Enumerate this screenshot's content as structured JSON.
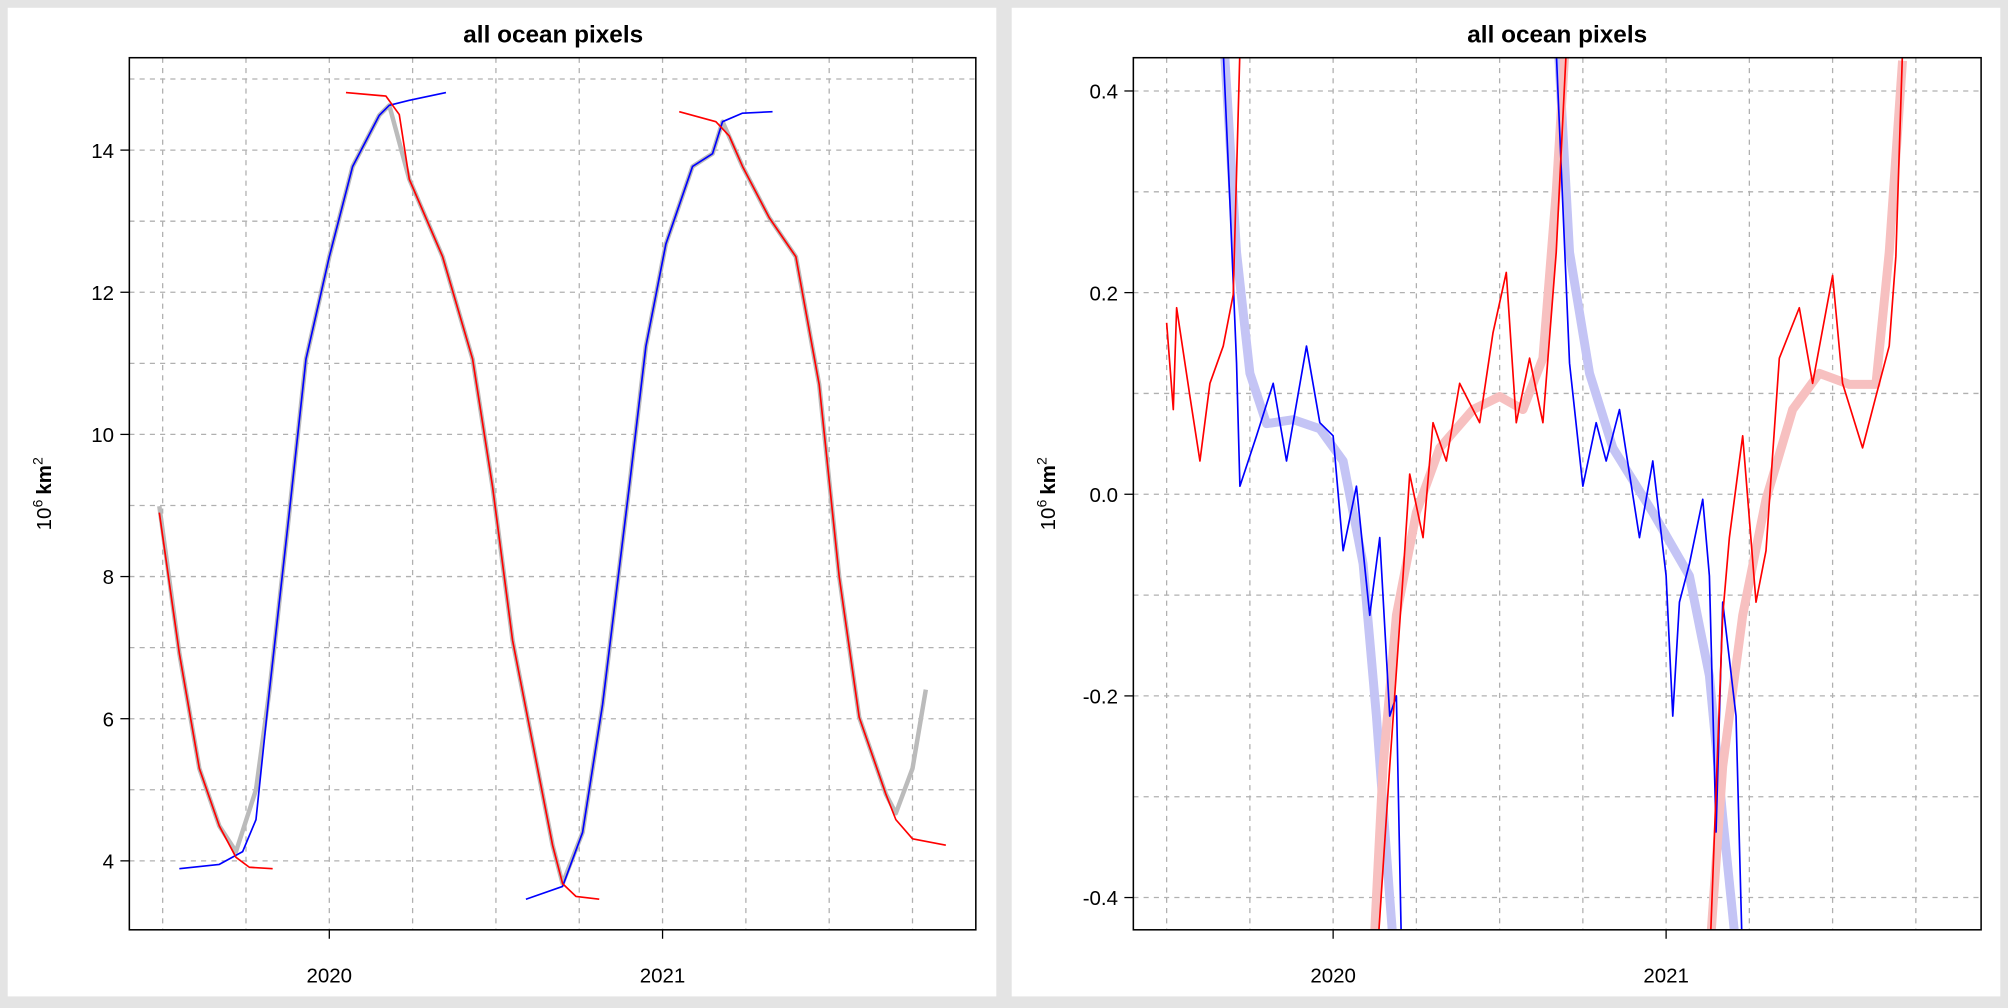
{
  "chart_data": [
    {
      "type": "line",
      "title": "all ocean pixels",
      "ylabel": {
        "base": "10",
        "exp": "6",
        "unit": "km",
        "unit_exp": "2"
      },
      "xlim": [
        2019.4,
        2021.94
      ],
      "ylim": [
        3.03,
        15.3
      ],
      "xticks": [
        2020,
        2021
      ],
      "yticks": [
        4,
        6,
        8,
        10,
        12,
        14
      ],
      "xgrid": [
        2019.5,
        2019.75,
        2020,
        2020.25,
        2020.5,
        2020.75,
        2021,
        2021.25,
        2021.5,
        2021.75
      ],
      "ygrid": [
        4,
        5,
        6,
        7,
        8,
        9,
        10,
        11,
        12,
        13,
        14,
        15
      ],
      "grid": true,
      "series": [
        {
          "color": "#bbbbbb",
          "lwd": 3.5,
          "x": [
            2019.49,
            2019.55,
            2019.61,
            2019.67,
            2019.72,
            2019.78,
            2019.82,
            2019.88,
            2019.93,
            2020,
            2020.07,
            2020.15,
            2020.18,
            2020.24,
            2020.34,
            2020.43,
            2020.49,
            2020.55,
            2020.61,
            2020.67,
            2020.7,
            2020.76,
            2020.82,
            2020.9,
            2020.95,
            2021.01,
            2021.09,
            2021.15,
            2021.18,
            2021.24,
            2021.32,
            2021.4,
            2021.47,
            2021.53,
            2021.59,
            2021.67,
            2021.7,
            2021.75,
            2021.79
          ],
          "values": [
            8.99,
            6.92,
            5.3,
            4.49,
            4.13,
            5.0,
            6.38,
            8.9,
            11.06,
            12.5,
            13.77,
            14.49,
            14.63,
            13.59,
            12.5,
            11.06,
            9.26,
            7.1,
            5.66,
            4.22,
            3.68,
            4.4,
            6.2,
            9.26,
            11.24,
            12.68,
            13.77,
            13.95,
            14.4,
            13.77,
            13.05,
            12.5,
            10.7,
            8.0,
            6.02,
            4.94,
            4.67,
            5.3,
            6.41
          ]
        },
        {
          "color": "#0000ff",
          "lwd": 1.3,
          "x": [
            2019.55,
            2019.67,
            2019.74,
            2019.78,
            2019.82,
            2019.88,
            2019.93,
            2020,
            2020.07,
            2020.15,
            2020.18,
            2020.24,
            2020.35
          ],
          "values": [
            3.89,
            3.95,
            4.13,
            4.58,
            6.38,
            8.9,
            11.06,
            12.5,
            13.77,
            14.49,
            14.63,
            14.7,
            14.81
          ]
        },
        {
          "color": "#0000ff",
          "lwd": 1.3,
          "x": [
            2020.59,
            2020.7,
            2020.76,
            2020.82,
            2020.9,
            2020.95,
            2021.01,
            2021.09,
            2021.15,
            2021.18,
            2021.24,
            2021.33
          ],
          "values": [
            3.46,
            3.64,
            4.4,
            6.2,
            9.26,
            11.24,
            12.68,
            13.77,
            13.95,
            14.4,
            14.52,
            14.54
          ]
        },
        {
          "color": "#ff0000",
          "lwd": 1.3,
          "x": [
            2019.49,
            2019.55,
            2019.61,
            2019.67,
            2019.72,
            2019.76,
            2019.83
          ],
          "values": [
            8.9,
            6.92,
            5.3,
            4.49,
            4.05,
            3.91,
            3.89
          ]
        },
        {
          "color": "#ff0000",
          "lwd": 1.3,
          "x": [
            2020.05,
            2020.17,
            2020.21,
            2020.24,
            2020.34,
            2020.43,
            2020.49,
            2020.55,
            2020.61,
            2020.67,
            2020.7,
            2020.74,
            2020.81
          ],
          "values": [
            14.81,
            14.76,
            14.5,
            13.59,
            12.5,
            11.06,
            9.26,
            7.1,
            5.66,
            4.22,
            3.68,
            3.5,
            3.46
          ]
        },
        {
          "color": "#ff0000",
          "lwd": 1.3,
          "x": [
            2021.05,
            2021.16,
            2021.2,
            2021.24,
            2021.32,
            2021.4,
            2021.47,
            2021.53,
            2021.59,
            2021.67,
            2021.7,
            2021.75,
            2021.85
          ],
          "values": [
            14.54,
            14.4,
            14.2,
            13.77,
            13.05,
            12.5,
            10.7,
            8.0,
            6.02,
            4.94,
            4.58,
            4.31,
            4.22
          ]
        }
      ]
    },
    {
      "type": "line",
      "title": "all ocean pixels",
      "ylabel": {
        "base": "10",
        "exp": "6",
        "unit": "km",
        "unit_exp": "2"
      },
      "xlim": [
        2019.4,
        2021.946
      ],
      "ylim": [
        -0.432,
        0.433
      ],
      "xticks": [
        2020,
        2021
      ],
      "yticks": [
        -0.4,
        -0.2,
        {
          "value": 0,
          "label": "0.0"
        },
        0.2,
        0.4
      ],
      "xgrid": [
        2019.5,
        2019.75,
        2020,
        2020.25,
        2020.5,
        2020.75,
        2021,
        2021.25,
        2021.5,
        2021.75
      ],
      "ygrid": [
        -0.4,
        -0.3,
        -0.2,
        -0.1,
        0,
        0.1,
        0.2,
        0.3,
        0.4
      ],
      "grid": true,
      "series": [
        {
          "color": "#c4c4f5",
          "lwd": 7,
          "x": [
            2019.67,
            2019.71,
            2019.75,
            2019.8,
            2019.88,
            2019.96,
            2020.03,
            2020.09,
            2020.13,
            2020.17,
            2020.2
          ],
          "values": [
            0.46,
            0.24,
            0.12,
            0.07,
            0.074,
            0.065,
            0.033,
            -0.069,
            -0.22,
            -0.4,
            -0.53
          ]
        },
        {
          "color": "#c4c4f5",
          "lwd": 7,
          "x": [
            2020.67,
            2020.71,
            2020.77,
            2020.84,
            2020.96,
            2021.07,
            2021.13,
            2021.17,
            2021.21
          ],
          "values": [
            0.48,
            0.24,
            0.12,
            0.046,
            -0.018,
            -0.081,
            -0.18,
            -0.32,
            -0.45
          ]
        },
        {
          "color": "#f7c0c0",
          "lwd": 7,
          "x": [
            2020.11,
            2020.15,
            2020.19,
            2020.25,
            2020.32,
            2020.42,
            2020.5,
            2020.57,
            2020.63,
            2020.67,
            2020.7
          ],
          "values": [
            -0.53,
            -0.27,
            -0.12,
            -0.018,
            0.046,
            0.084,
            0.097,
            0.084,
            0.135,
            0.3,
            0.46
          ]
        },
        {
          "color": "#f7c0c0",
          "lwd": 7,
          "x": [
            2021.13,
            2021.17,
            2021.23,
            2021.3,
            2021.38,
            2021.46,
            2021.55,
            2021.63,
            2021.67,
            2021.71
          ],
          "values": [
            -0.46,
            -0.27,
            -0.12,
            -0.005,
            0.084,
            0.12,
            0.109,
            0.109,
            0.24,
            0.43
          ]
        },
        {
          "color": "#0000ff",
          "lwd": 1.3,
          "x": [
            2019.67,
            2019.69,
            2019.71,
            2019.72,
            2019.77,
            2019.82,
            2019.86,
            2019.92,
            2019.96,
            2020,
            2020.03,
            2020.07,
            2020.11,
            2020.14,
            2020.17,
            2020.19,
            2020.21
          ],
          "values": [
            0.44,
            0.29,
            0.13,
            0.008,
            0.058,
            0.11,
            0.033,
            0.147,
            0.071,
            0.058,
            -0.056,
            0.008,
            -0.12,
            -0.043,
            -0.22,
            -0.2,
            -0.53
          ]
        },
        {
          "color": "#0000ff",
          "lwd": 1.3,
          "x": [
            2020.67,
            2020.71,
            2020.75,
            2020.79,
            2020.82,
            2020.86,
            2020.92,
            2020.96,
            2021,
            2021.02,
            2021.04,
            2021.07,
            2021.11,
            2021.13,
            2021.15,
            2021.17,
            2021.21,
            2021.23
          ],
          "values": [
            0.44,
            0.13,
            0.008,
            0.071,
            0.033,
            0.084,
            -0.043,
            0.033,
            -0.081,
            -0.22,
            -0.107,
            -0.069,
            -0.005,
            -0.081,
            -0.335,
            -0.107,
            -0.22,
            -0.47
          ]
        },
        {
          "color": "#ff0000",
          "lwd": 1.3,
          "x": [
            2019.5,
            2019.52,
            2019.53,
            2019.57,
            2019.6,
            2019.63,
            2019.67,
            2019.7,
            2019.72
          ],
          "values": [
            0.17,
            0.084,
            0.185,
            0.097,
            0.033,
            0.11,
            0.147,
            0.198,
            0.44
          ]
        },
        {
          "color": "#ff0000",
          "lwd": 1.3,
          "x": [
            2020.13,
            2020.17,
            2020.21,
            2020.23,
            2020.27,
            2020.3,
            2020.34,
            2020.38,
            2020.44,
            2020.48,
            2020.52,
            2020.55,
            2020.59,
            2020.63,
            2020.67,
            2020.7
          ],
          "values": [
            -0.47,
            -0.27,
            -0.081,
            0.02,
            -0.043,
            0.071,
            0.033,
            0.11,
            0.071,
            0.16,
            0.22,
            0.071,
            0.135,
            0.071,
            0.24,
            0.44
          ]
        },
        {
          "color": "#ff0000",
          "lwd": 1.3,
          "x": [
            2021.13,
            2021.17,
            2021.19,
            2021.23,
            2021.27,
            2021.3,
            2021.34,
            2021.4,
            2021.44,
            2021.5,
            2021.53,
            2021.59,
            2021.63,
            2021.67,
            2021.69,
            2021.71
          ],
          "values": [
            -0.47,
            -0.12,
            -0.043,
            0.058,
            -0.107,
            -0.056,
            0.135,
            0.185,
            0.11,
            0.217,
            0.11,
            0.046,
            0.097,
            0.147,
            0.236,
            0.44
          ]
        }
      ]
    }
  ]
}
